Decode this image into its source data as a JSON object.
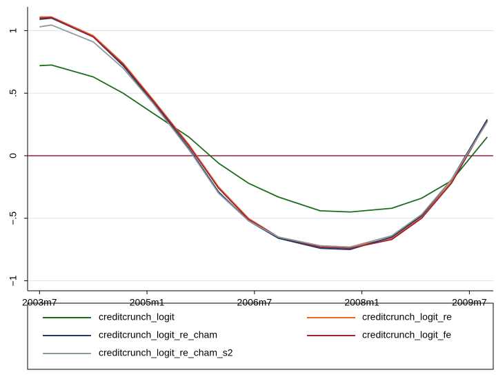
{
  "chart_data": {
    "type": "line",
    "x": [
      "2003m7",
      "2003m9",
      "2004m4",
      "2004m9",
      "2005m2",
      "2005m8",
      "2006m1",
      "2006m6",
      "2006m11",
      "2007m6",
      "2007m11",
      "2008m6",
      "2008m11",
      "2009m4",
      "2009m10"
    ],
    "series": [
      {
        "name": "creditcrunch_logit",
        "color": "#1a6b1a",
        "values": [
          0.72,
          0.725,
          0.63,
          0.5,
          0.34,
          0.15,
          -0.06,
          -0.22,
          -0.33,
          -0.44,
          -0.45,
          -0.42,
          -0.34,
          -0.2,
          0.15
        ]
      },
      {
        "name": "creditcrunch_logit_re",
        "color": "#e8682a",
        "values": [
          1.11,
          1.11,
          0.96,
          0.74,
          0.45,
          0.09,
          -0.25,
          -0.5,
          -0.65,
          -0.72,
          -0.73,
          -0.66,
          -0.49,
          -0.21,
          0.29
        ]
      },
      {
        "name": "creditcrunch_logit_re_cham",
        "color": "#1c3a6b",
        "values": [
          1.09,
          1.1,
          0.95,
          0.72,
          0.43,
          0.06,
          -0.29,
          -0.52,
          -0.66,
          -0.74,
          -0.75,
          -0.65,
          -0.48,
          -0.19,
          0.29
        ]
      },
      {
        "name": "creditcrunch_logit_fe",
        "color": "#9b2335",
        "values": [
          1.1,
          1.105,
          0.95,
          0.73,
          0.44,
          0.08,
          -0.26,
          -0.51,
          -0.65,
          -0.73,
          -0.74,
          -0.67,
          -0.5,
          -0.22,
          0.28
        ]
      },
      {
        "name": "creditcrunch_logit_re_cham_s2",
        "color": "#8c9a98",
        "values": [
          1.03,
          1.045,
          0.91,
          0.7,
          0.42,
          0.05,
          -0.3,
          -0.52,
          -0.65,
          -0.72,
          -0.73,
          -0.64,
          -0.47,
          -0.19,
          0.27
        ]
      }
    ],
    "xlim": [
      "2003m5",
      "2009m11"
    ],
    "xticks": [
      "2003m7",
      "2005m1",
      "2006m7",
      "2008m1",
      "2009m7"
    ],
    "ylim": [
      -1.08,
      1.19
    ],
    "yticks": [
      {
        "value": -1,
        "label": "−1"
      },
      {
        "value": -0.5,
        "label": "−.5"
      },
      0,
      {
        "value": 0.5,
        "label": ".5"
      },
      1
    ],
    "grid": true,
    "yline": 0,
    "yline_color": "#9b1b4a"
  }
}
